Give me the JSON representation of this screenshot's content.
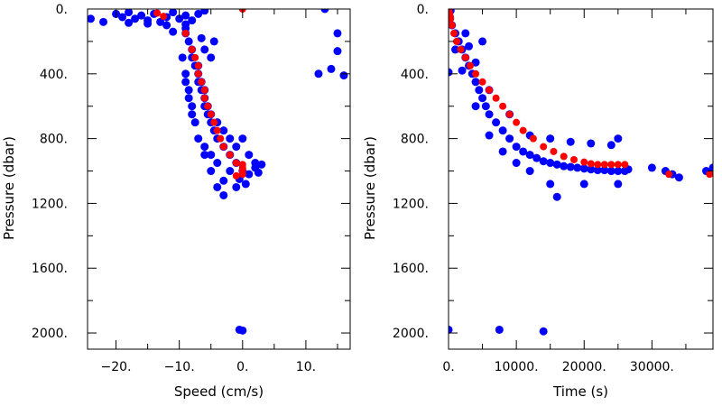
{
  "chart_data": [
    {
      "type": "scatter",
      "xlabel": "Speed (cm/s)",
      "ylabel": "Pressure (dbar)",
      "xlim": [
        -24.5,
        17
      ],
      "ylim": [
        0,
        2100
      ],
      "y_inverted": true,
      "xticks": [
        -20,
        -10,
        0,
        10
      ],
      "xtick_labels": [
        "−20.",
        "−10.",
        "0.",
        "10."
      ],
      "yticks": [
        0,
        400,
        800,
        1200,
        1600,
        2000
      ],
      "ytick_labels": [
        "0.",
        "400.",
        "800.",
        "1200.",
        "1600.",
        "2000."
      ],
      "grid": false,
      "series": [
        {
          "color": "#0000ff",
          "points": [
            [
              -24,
              60
            ],
            [
              -22,
              80
            ],
            [
              -20,
              30
            ],
            [
              -19,
              50
            ],
            [
              -18,
              20
            ],
            [
              -17,
              60
            ],
            [
              -16,
              40
            ],
            [
              -15,
              70
            ],
            [
              -14,
              30
            ],
            [
              -13,
              80
            ],
            [
              -12,
              50
            ],
            [
              -11,
              20
            ],
            [
              -10,
              60
            ],
            [
              -9,
              40
            ],
            [
              -8,
              70
            ],
            [
              -7,
              30
            ],
            [
              -6,
              10
            ],
            [
              -15,
              90
            ],
            [
              -12,
              100
            ],
            [
              -9,
              95
            ],
            [
              -18,
              85
            ],
            [
              -9,
              150
            ],
            [
              -8.5,
              200
            ],
            [
              -8,
              250
            ],
            [
              -8,
              300
            ],
            [
              -7.5,
              350
            ],
            [
              -7,
              400
            ],
            [
              -7,
              450
            ],
            [
              -6.5,
              500
            ],
            [
              -6,
              550
            ],
            [
              -6,
              600
            ],
            [
              -5.5,
              650
            ],
            [
              -5,
              700
            ],
            [
              -4.5,
              750
            ],
            [
              -4,
              800
            ],
            [
              -3,
              850
            ],
            [
              -2,
              900
            ],
            [
              -1,
              950
            ],
            [
              0,
              1000
            ],
            [
              1,
              1020
            ],
            [
              2,
              980
            ],
            [
              3,
              960
            ],
            [
              -9.5,
              300
            ],
            [
              -9,
              400
            ],
            [
              -8.5,
              500
            ],
            [
              -8,
              600
            ],
            [
              -7.5,
              700
            ],
            [
              -7,
              800
            ],
            [
              -6,
              900
            ],
            [
              -5,
              1000
            ],
            [
              -4,
              1100
            ],
            [
              -3,
              1150
            ],
            [
              -7,
              350
            ],
            [
              -6.5,
              450
            ],
            [
              -6,
              500
            ],
            [
              -5.5,
              600
            ],
            [
              -5,
              650
            ],
            [
              -4,
              700
            ],
            [
              -3,
              750
            ],
            [
              -2,
              800
            ],
            [
              -1,
              850
            ],
            [
              1,
              900
            ],
            [
              2,
              950
            ],
            [
              0,
              800
            ],
            [
              -0.5,
              1050
            ],
            [
              -2,
              1000
            ],
            [
              -4,
              950
            ],
            [
              -5,
              900
            ],
            [
              -6,
              850
            ],
            [
              -8,
              650
            ],
            [
              -8.5,
              550
            ],
            [
              -9,
              450
            ],
            [
              -6,
              250
            ],
            [
              -5,
              300
            ],
            [
              -4.5,
              200
            ],
            [
              -6.5,
              180
            ],
            [
              -9,
              120
            ],
            [
              -11,
              140
            ],
            [
              -3,
              1060
            ],
            [
              -1,
              1100
            ],
            [
              0.5,
              1080
            ],
            [
              2.5,
              1010
            ],
            [
              -0.5,
              1980
            ],
            [
              0,
              1985
            ],
            [
              12,
              400
            ],
            [
              14,
              370
            ],
            [
              16,
              410
            ],
            [
              13,
              0
            ],
            [
              15,
              150
            ],
            [
              15,
              260
            ]
          ]
        },
        {
          "color": "#ff0000",
          "points": [
            [
              -13.5,
              25
            ],
            [
              -12.5,
              45
            ],
            [
              -9,
              150
            ],
            [
              -8,
              250
            ],
            [
              -7.5,
              300
            ],
            [
              -7,
              350
            ],
            [
              -7,
              400
            ],
            [
              -6.5,
              450
            ],
            [
              -6,
              500
            ],
            [
              -6,
              550
            ],
            [
              -5.5,
              600
            ],
            [
              -5,
              650
            ],
            [
              -4.5,
              700
            ],
            [
              -4,
              750
            ],
            [
              -3.5,
              800
            ],
            [
              -3,
              850
            ],
            [
              -2,
              900
            ],
            [
              -1,
              950
            ],
            [
              0,
              960
            ],
            [
              0,
              980
            ],
            [
              0,
              1000
            ],
            [
              0,
              1020
            ],
            [
              -1,
              1030
            ],
            [
              0,
              0
            ]
          ]
        }
      ]
    },
    {
      "type": "scatter",
      "xlabel": "Time (s)",
      "ylabel": "Pressure (dbar)",
      "xlim": [
        0,
        39000
      ],
      "ylim": [
        0,
        2100
      ],
      "y_inverted": true,
      "xticks": [
        0,
        10000,
        20000,
        30000
      ],
      "xtick_labels": [
        "0.",
        "10000.",
        "20000.",
        "30000."
      ],
      "yticks": [
        0,
        400,
        800,
        1200,
        1600,
        2000
      ],
      "ytick_labels": [
        "0.",
        "400.",
        "800.",
        "1200.",
        "1600.",
        "2000."
      ],
      "grid": false,
      "series": [
        {
          "color": "#0000ff",
          "points": [
            [
              200,
              50
            ],
            [
              500,
              100
            ],
            [
              1000,
              150
            ],
            [
              1500,
              200
            ],
            [
              2000,
              250
            ],
            [
              2500,
              300
            ],
            [
              3000,
              350
            ],
            [
              3500,
              400
            ],
            [
              4000,
              450
            ],
            [
              4500,
              500
            ],
            [
              5000,
              550
            ],
            [
              5500,
              600
            ],
            [
              6000,
              650
            ],
            [
              7000,
              700
            ],
            [
              8000,
              750
            ],
            [
              9000,
              800
            ],
            [
              10000,
              850
            ],
            [
              11000,
              880
            ],
            [
              12000,
              900
            ],
            [
              13000,
              920
            ],
            [
              14000,
              940
            ],
            [
              15000,
              950
            ],
            [
              16000,
              960
            ],
            [
              17000,
              970
            ],
            [
              18000,
              975
            ],
            [
              19000,
              980
            ],
            [
              20000,
              985
            ],
            [
              21000,
              990
            ],
            [
              22000,
              995
            ],
            [
              23000,
              995
            ],
            [
              24000,
              1000
            ],
            [
              25000,
              1000
            ],
            [
              26000,
              1000
            ],
            [
              26500,
              990
            ],
            [
              30000,
              980
            ],
            [
              32000,
              1000
            ],
            [
              33000,
              1020
            ],
            [
              34000,
              1040
            ],
            [
              38000,
              1000
            ],
            [
              39000,
              980
            ],
            [
              0,
              390
            ],
            [
              0,
              1980
            ],
            [
              7500,
              1980
            ],
            [
              14000,
              1990
            ],
            [
              16000,
              1160
            ],
            [
              2500,
              150
            ],
            [
              4000,
              330
            ],
            [
              6000,
              500
            ],
            [
              9000,
              650
            ],
            [
              12000,
              780
            ],
            [
              15000,
              800
            ],
            [
              18000,
              820
            ],
            [
              21000,
              830
            ],
            [
              24000,
              840
            ],
            [
              25000,
              800
            ],
            [
              25000,
              1080
            ],
            [
              20000,
              1080
            ],
            [
              15000,
              1080
            ],
            [
              12000,
              1000
            ],
            [
              10000,
              950
            ],
            [
              8000,
              880
            ],
            [
              6000,
              780
            ],
            [
              4000,
              600
            ],
            [
              2000,
              380
            ],
            [
              1000,
              250
            ],
            [
              300,
              10
            ],
            [
              5000,
              200
            ],
            [
              3000,
              230
            ]
          ]
        },
        {
          "color": "#ff0000",
          "points": [
            [
              0,
              0
            ],
            [
              100,
              20
            ],
            [
              200,
              40
            ],
            [
              300,
              60
            ],
            [
              500,
              100
            ],
            [
              800,
              150
            ],
            [
              1200,
              200
            ],
            [
              1800,
              250
            ],
            [
              2500,
              300
            ],
            [
              3200,
              350
            ],
            [
              4000,
              400
            ],
            [
              5000,
              450
            ],
            [
              6000,
              500
            ],
            [
              7000,
              550
            ],
            [
              8000,
              600
            ],
            [
              9000,
              650
            ],
            [
              10000,
              700
            ],
            [
              11000,
              750
            ],
            [
              12500,
              800
            ],
            [
              14000,
              850
            ],
            [
              15500,
              880
            ],
            [
              17000,
              910
            ],
            [
              18500,
              930
            ],
            [
              20000,
              945
            ],
            [
              21000,
              955
            ],
            [
              22000,
              960
            ],
            [
              23000,
              960
            ],
            [
              24000,
              960
            ],
            [
              25000,
              960
            ],
            [
              26000,
              960
            ],
            [
              32500,
              1020
            ],
            [
              38500,
              1020
            ]
          ]
        }
      ]
    }
  ]
}
